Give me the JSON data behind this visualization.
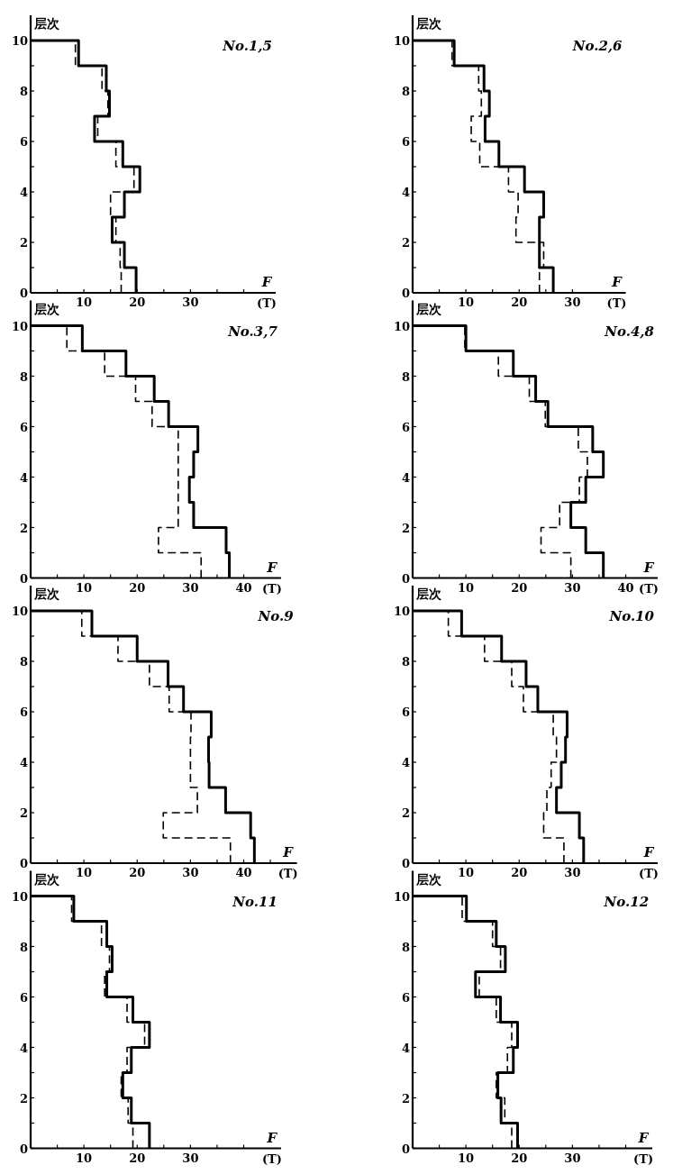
{
  "chart_data": [
    {
      "type": "step",
      "orientation": "horizontal",
      "title": "No.1,5",
      "ylabel": "层次",
      "xlabel": "F",
      "annotations": [
        "(T)"
      ],
      "x": [
        0,
        1,
        2,
        3,
        4,
        5,
        6,
        7,
        8,
        9,
        10
      ],
      "xlim": [
        0,
        46
      ],
      "ylim": [
        0,
        11
      ],
      "xticks": [
        {
          "value": 5,
          "label": null
        },
        10,
        {
          "value": 15,
          "label": null
        },
        20,
        {
          "value": 25,
          "label": null
        },
        30,
        {
          "value": 35,
          "label": null
        },
        {
          "value": 40,
          "label": null
        }
      ],
      "yticks": [
        0,
        {
          "value": 1,
          "label": null
        },
        2,
        {
          "value": 3,
          "label": null
        },
        4,
        {
          "value": 5,
          "label": null
        },
        6,
        {
          "value": 7,
          "label": null
        },
        8,
        {
          "value": 9,
          "label": null
        },
        10
      ],
      "series": [
        {
          "color": "#000000",
          "line_style": "solid",
          "values": [
            19.8,
            17.6,
            15.3,
            17.6,
            20.5,
            17.3,
            12,
            14.8,
            14.2,
            9,
            0
          ]
        },
        {
          "color": "#000000",
          "line_style": "dashed",
          "values": [
            17,
            16.8,
            16,
            15,
            19.4,
            16,
            12.6,
            14.5,
            13.4,
            8.4,
            0
          ]
        }
      ]
    },
    {
      "type": "step",
      "orientation": "horizontal",
      "title": "No.2,6",
      "ylabel": "层次",
      "xlabel": "F",
      "annotations": [
        "(T)"
      ],
      "x": [
        0,
        1,
        2,
        3,
        4,
        5,
        6,
        7,
        8,
        9,
        10
      ],
      "xlim": [
        0,
        40
      ],
      "ylim": [
        0,
        11
      ],
      "xticks": [
        {
          "value": 5,
          "label": null
        },
        10,
        {
          "value": 15,
          "label": null
        },
        20,
        {
          "value": 25,
          "label": null
        },
        30
      ],
      "yticks": [
        0,
        {
          "value": 1,
          "label": null
        },
        2,
        {
          "value": 3,
          "label": null
        },
        4,
        {
          "value": 5,
          "label": null
        },
        6,
        {
          "value": 7,
          "label": null
        },
        8,
        {
          "value": 9,
          "label": null
        },
        10
      ],
      "series": [
        {
          "color": "#000000",
          "line_style": "solid",
          "values": [
            26.4,
            23.8,
            23.8,
            24.6,
            21,
            16.2,
            13.6,
            14.4,
            13.4,
            7.8,
            0
          ]
        },
        {
          "color": "#000000",
          "line_style": "dashed",
          "values": [
            23.8,
            24.6,
            19.4,
            19.8,
            18,
            12.6,
            11,
            12.9,
            12.4,
            7.4,
            0
          ]
        }
      ]
    },
    {
      "type": "step",
      "orientation": "horizontal",
      "title": "No.3,7",
      "ylabel": "层次",
      "xlabel": "F",
      "annotations": [
        "(T)"
      ],
      "x": [
        0,
        1,
        2,
        3,
        4,
        5,
        6,
        7,
        8,
        9,
        10
      ],
      "xlim": [
        0,
        47
      ],
      "ylim": [
        0,
        11
      ],
      "xticks": [
        {
          "value": 5,
          "label": null
        },
        10,
        {
          "value": 15,
          "label": null
        },
        20,
        {
          "value": 25,
          "label": null
        },
        30,
        {
          "value": 35,
          "label": null
        },
        40
      ],
      "yticks": [
        0,
        {
          "value": 1,
          "label": null
        },
        2,
        {
          "value": 3,
          "label": null
        },
        4,
        {
          "value": 5,
          "label": null
        },
        6,
        {
          "value": 7,
          "label": null
        },
        8,
        {
          "value": 9,
          "label": null
        },
        10
      ],
      "series": [
        {
          "color": "#000000",
          "line_style": "solid",
          "values": [
            37.3,
            36.7,
            30.6,
            29.8,
            30.6,
            31.4,
            25.9,
            23.2,
            17.9,
            9.7,
            0
          ]
        },
        {
          "color": "#000000",
          "line_style": "dashed",
          "values": [
            32,
            24,
            27.7,
            27.7,
            27.7,
            27.7,
            22.8,
            19.7,
            13.9,
            6.8,
            0
          ]
        }
      ]
    },
    {
      "type": "step",
      "orientation": "horizontal",
      "title": "No.4,8",
      "ylabel": "层次",
      "xlabel": "F",
      "annotations": [
        "(T)"
      ],
      "x": [
        0,
        1,
        2,
        3,
        4,
        5,
        6,
        7,
        8,
        9,
        10
      ],
      "xlim": [
        0,
        46
      ],
      "ylim": [
        0,
        11
      ],
      "xticks": [
        {
          "value": 5,
          "label": null
        },
        10,
        {
          "value": 15,
          "label": null
        },
        20,
        {
          "value": 25,
          "label": null
        },
        30,
        {
          "value": 35,
          "label": null
        },
        40
      ],
      "yticks": [
        0,
        {
          "value": 1,
          "label": null
        },
        2,
        {
          "value": 3,
          "label": null
        },
        4,
        {
          "value": 5,
          "label": null
        },
        6,
        {
          "value": 7,
          "label": null
        },
        8,
        {
          "value": 9,
          "label": null
        },
        10
      ],
      "series": [
        {
          "color": "#000000",
          "line_style": "solid",
          "values": [
            35.8,
            32.5,
            29.7,
            32.5,
            35.8,
            33.8,
            25.4,
            23.1,
            18.9,
            10,
            0
          ]
        },
        {
          "color": "#000000",
          "line_style": "dashed",
          "values": [
            29.7,
            24.1,
            27.6,
            31.3,
            32.8,
            31.1,
            24.9,
            21.9,
            16.1,
            9.8,
            0
          ]
        }
      ]
    },
    {
      "type": "step",
      "orientation": "horizontal",
      "title": "No.9",
      "ylabel": "层次",
      "xlabel": "F",
      "annotations": [
        "(T)"
      ],
      "x": [
        0,
        1,
        2,
        3,
        4,
        5,
        6,
        7,
        8,
        9,
        10
      ],
      "xlim": [
        0,
        50
      ],
      "ylim": [
        0,
        11
      ],
      "xticks": [
        {
          "value": 5,
          "label": null
        },
        10,
        {
          "value": 15,
          "label": null
        },
        20,
        {
          "value": 25,
          "label": null
        },
        30,
        {
          "value": 35,
          "label": null
        },
        40,
        {
          "value": 45,
          "label": null
        }
      ],
      "yticks": [
        0,
        {
          "value": 1,
          "label": null
        },
        2,
        {
          "value": 3,
          "label": null
        },
        4,
        {
          "value": 5,
          "label": null
        },
        6,
        {
          "value": 7,
          "label": null
        },
        8,
        {
          "value": 9,
          "label": null
        },
        10
      ],
      "series": [
        {
          "color": "#000000",
          "line_style": "solid",
          "values": [
            42,
            41.3,
            36.6,
            33.5,
            33.4,
            33.9,
            28.7,
            25.8,
            20,
            11.5,
            0
          ]
        },
        {
          "color": "#000000",
          "line_style": "dashed",
          "values": [
            37.5,
            24.9,
            31.3,
            30,
            30,
            30.1,
            26,
            22.3,
            16.4,
            9.6,
            0
          ]
        }
      ]
    },
    {
      "type": "step",
      "orientation": "horizontal",
      "title": "No.10",
      "ylabel": "层次",
      "xlabel": "F",
      "annotations": [
        "(T)"
      ],
      "x": [
        0,
        1,
        2,
        3,
        4,
        5,
        6,
        7,
        8,
        9,
        10
      ],
      "xlim": [
        0,
        46
      ],
      "ylim": [
        0,
        11
      ],
      "xticks": [
        {
          "value": 5,
          "label": null
        },
        10,
        {
          "value": 15,
          "label": null
        },
        20,
        {
          "value": 25,
          "label": null
        },
        30,
        {
          "value": 35,
          "label": null
        },
        {
          "value": 40,
          "label": null
        }
      ],
      "yticks": [
        0,
        {
          "value": 1,
          "label": null
        },
        2,
        {
          "value": 3,
          "label": null
        },
        4,
        {
          "value": 5,
          "label": null
        },
        6,
        {
          "value": 7,
          "label": null
        },
        8,
        {
          "value": 9,
          "label": null
        },
        10
      ],
      "series": [
        {
          "color": "#000000",
          "line_style": "solid",
          "values": [
            32.1,
            31.3,
            27,
            27.9,
            28.7,
            29,
            23.5,
            21.3,
            16.7,
            9.2,
            0
          ]
        },
        {
          "color": "#000000",
          "line_style": "dashed",
          "values": [
            28.4,
            24.6,
            25.2,
            26,
            27,
            26.4,
            20.8,
            18.6,
            13.5,
            6.7,
            0
          ]
        }
      ]
    },
    {
      "type": "step",
      "orientation": "horizontal",
      "title": "No.11",
      "ylabel": "层次",
      "xlabel": "F",
      "annotations": [
        "(T)"
      ],
      "x": [
        0,
        1,
        2,
        3,
        4,
        5,
        6,
        7,
        8,
        9,
        10
      ],
      "xlim": [
        0,
        47
      ],
      "ylim": [
        0,
        11
      ],
      "xticks": [
        {
          "value": 5,
          "label": null
        },
        10,
        {
          "value": 15,
          "label": null
        },
        20,
        {
          "value": 25,
          "label": null
        },
        30,
        {
          "value": 35,
          "label": null
        },
        {
          "value": 40,
          "label": null
        }
      ],
      "yticks": [
        0,
        {
          "value": 1,
          "label": null
        },
        2,
        {
          "value": 3,
          "label": null
        },
        4,
        {
          "value": 5,
          "label": null
        },
        6,
        {
          "value": 7,
          "label": null
        },
        8,
        {
          "value": 9,
          "label": null
        },
        10
      ],
      "series": [
        {
          "color": "#000000",
          "line_style": "solid",
          "values": [
            22.3,
            18.9,
            17.3,
            18.9,
            22.3,
            19.2,
            14.3,
            15.3,
            14.3,
            8.1,
            0
          ]
        },
        {
          "color": "#000000",
          "line_style": "dashed",
          "values": [
            19.2,
            18.3,
            17,
            18.1,
            21.4,
            18.1,
            13.9,
            14.8,
            13.3,
            7.7,
            0
          ]
        }
      ]
    },
    {
      "type": "step",
      "orientation": "horizontal",
      "title": "No.12",
      "ylabel": "层次",
      "xlabel": "F",
      "annotations": [
        "(T)"
      ],
      "x": [
        0,
        1,
        2,
        3,
        4,
        5,
        6,
        7,
        8,
        9,
        10
      ],
      "xlim": [
        0,
        45
      ],
      "ylim": [
        0,
        11
      ],
      "xticks": [
        {
          "value": 5,
          "label": null
        },
        10,
        {
          "value": 15,
          "label": null
        },
        20,
        {
          "value": 25,
          "label": null
        },
        30,
        {
          "value": 35,
          "label": null
        },
        {
          "value": 40,
          "label": null
        }
      ],
      "yticks": [
        0,
        {
          "value": 1,
          "label": null
        },
        2,
        {
          "value": 3,
          "label": null
        },
        4,
        {
          "value": 5,
          "label": null
        },
        6,
        {
          "value": 7,
          "label": null
        },
        8,
        {
          "value": 9,
          "label": null
        },
        10
      ],
      "series": [
        {
          "color": "#000000",
          "line_style": "solid",
          "values": [
            19.7,
            16.6,
            16,
            18.9,
            19.7,
            16.5,
            11.8,
            17.4,
            15.7,
            10.1,
            0
          ]
        },
        {
          "color": "#000000",
          "line_style": "dashed",
          "values": [
            18.6,
            17.3,
            15.7,
            17.8,
            18.6,
            15.7,
            12.5,
            16.5,
            15,
            9.3,
            0
          ]
        }
      ]
    }
  ]
}
